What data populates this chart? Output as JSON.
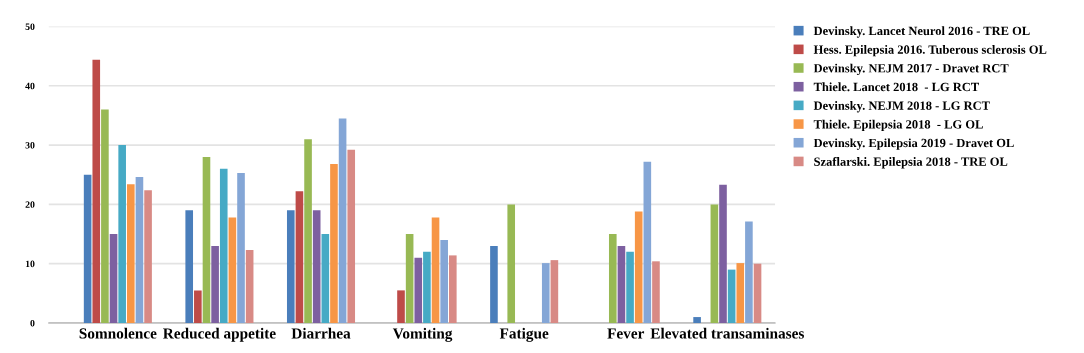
{
  "chart_data": {
    "type": "bar",
    "categories": [
      "Somnolence",
      "Reduced appetite",
      "Diarrhea",
      "Vomiting",
      "Fatigue",
      "Fever",
      "Elevated transaminases"
    ],
    "series": [
      {
        "name": "Devinsky. Lancet Neurol 2016 - TRE OL",
        "color": "#4a7ebb",
        "values": [
          25,
          19,
          19,
          null,
          13,
          null,
          1
        ]
      },
      {
        "name": "Hess. Epilepsia 2016. Tuberous sclerosis OL",
        "color": "#be4b48",
        "values": [
          44.4,
          5.5,
          22.2,
          5.5,
          null,
          null,
          null
        ]
      },
      {
        "name": "Devinsky. NEJM 2017 - Dravet RCT",
        "color": "#98b954",
        "values": [
          36,
          28,
          31,
          15,
          20,
          15,
          20
        ]
      },
      {
        "name": "Thiele. Lancet 2018  - LG RCT",
        "color": "#7d60a0",
        "values": [
          15,
          13,
          19,
          11,
          null,
          13,
          23.3
        ]
      },
      {
        "name": "Devinsky. NEJM 2018 - LG RCT",
        "color": "#46aac5",
        "values": [
          30,
          26,
          15,
          12,
          null,
          12,
          9
        ]
      },
      {
        "name": "Thiele. Epilepsia 2018  - LG OL",
        "color": "#f79646",
        "values": [
          23.4,
          17.8,
          26.8,
          17.8,
          null,
          18.8,
          10.1
        ]
      },
      {
        "name": "Devinsky. Epilepsia 2019 - Dravet OL",
        "color": "#84a6d6",
        "values": [
          24.6,
          25.3,
          34.5,
          14,
          10.1,
          27.2,
          17.1
        ]
      },
      {
        "name": "Szaflarski. Epilepsia 2018 - TRE OL",
        "color": "#d88a85",
        "values": [
          22.4,
          12.3,
          29.2,
          11.4,
          10.6,
          10.4,
          10
        ]
      }
    ],
    "ylim": [
      0,
      50
    ],
    "yticks": [
      0,
      10,
      20,
      30,
      40,
      50
    ],
    "grid": "y",
    "legend": "top right"
  }
}
